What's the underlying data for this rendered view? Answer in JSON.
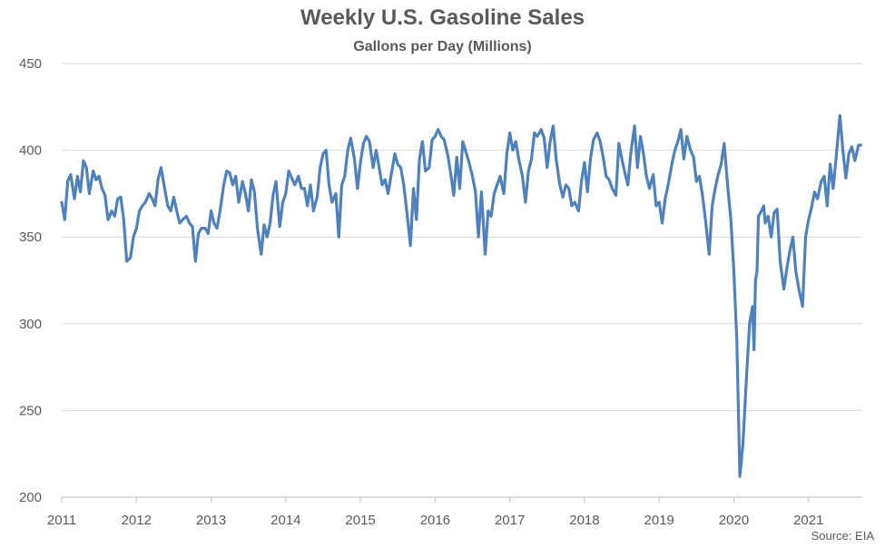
{
  "chart_data": {
    "type": "line",
    "title": "Weekly U.S. Gasoline Sales",
    "subtitle": "Gallons per Day (Millions)",
    "source": "Source: EIA",
    "xlabel": "",
    "ylabel": "",
    "xlim": [
      2011,
      2021.72
    ],
    "ylim": [
      200,
      450
    ],
    "y_ticks": [
      "200",
      "250",
      "300",
      "350",
      "400",
      "450"
    ],
    "x_ticks": [
      "2011",
      "2012",
      "2013",
      "2014",
      "2015",
      "2016",
      "2017",
      "2018",
      "2019",
      "2020",
      "2021"
    ],
    "grid": "horizontal",
    "line_color": "#4F81BD",
    "series": [
      {
        "x": [
          2011.0,
          2011.04,
          2011.08,
          2011.12,
          2011.17,
          2011.21,
          2011.25,
          2011.29,
          2011.33,
          2011.37,
          2011.42,
          2011.46,
          2011.5,
          2011.54,
          2011.58,
          2011.62,
          2011.67,
          2011.71,
          2011.75,
          2011.79,
          2011.83,
          2011.87,
          2011.92,
          2011.96,
          2012.0,
          2012.04,
          2012.08,
          2012.12,
          2012.17,
          2012.21,
          2012.25,
          2012.29,
          2012.33,
          2012.37,
          2012.42,
          2012.46,
          2012.5,
          2012.54,
          2012.58,
          2012.62,
          2012.67,
          2012.71,
          2012.75,
          2012.79,
          2012.83,
          2012.87,
          2012.92,
          2012.96,
          2013.0,
          2013.04,
          2013.08,
          2013.12,
          2013.17,
          2013.21,
          2013.25,
          2013.29,
          2013.33,
          2013.37,
          2013.42,
          2013.46,
          2013.5,
          2013.54,
          2013.58,
          2013.62,
          2013.67,
          2013.71,
          2013.75,
          2013.79,
          2013.83,
          2013.87,
          2013.92,
          2013.96,
          2014.0,
          2014.04,
          2014.08,
          2014.12,
          2014.17,
          2014.21,
          2014.25,
          2014.29,
          2014.33,
          2014.37,
          2014.42,
          2014.46,
          2014.5,
          2014.54,
          2014.58,
          2014.62,
          2014.67,
          2014.71,
          2014.75,
          2014.79,
          2014.83,
          2014.87,
          2014.92,
          2014.96,
          2015.0,
          2015.04,
          2015.08,
          2015.12,
          2015.17,
          2015.21,
          2015.25,
          2015.29,
          2015.33,
          2015.37,
          2015.42,
          2015.46,
          2015.5,
          2015.54,
          2015.58,
          2015.62,
          2015.67,
          2015.71,
          2015.75,
          2015.79,
          2015.83,
          2015.87,
          2015.92,
          2015.96,
          2016.0,
          2016.04,
          2016.08,
          2016.12,
          2016.17,
          2016.21,
          2016.25,
          2016.29,
          2016.33,
          2016.37,
          2016.42,
          2016.46,
          2016.5,
          2016.54,
          2016.58,
          2016.62,
          2016.67,
          2016.71,
          2016.75,
          2016.79,
          2016.83,
          2016.87,
          2016.92,
          2016.96,
          2017.0,
          2017.04,
          2017.08,
          2017.12,
          2017.17,
          2017.21,
          2017.25,
          2017.29,
          2017.33,
          2017.37,
          2017.42,
          2017.46,
          2017.5,
          2017.54,
          2017.58,
          2017.62,
          2017.67,
          2017.71,
          2017.75,
          2017.79,
          2017.83,
          2017.87,
          2017.92,
          2017.96,
          2018.0,
          2018.04,
          2018.08,
          2018.12,
          2018.17,
          2018.21,
          2018.25,
          2018.29,
          2018.33,
          2018.37,
          2018.42,
          2018.46,
          2018.5,
          2018.54,
          2018.58,
          2018.62,
          2018.67,
          2018.71,
          2018.75,
          2018.79,
          2018.83,
          2018.87,
          2018.92,
          2018.96,
          2019.0,
          2019.04,
          2019.08,
          2019.12,
          2019.17,
          2019.21,
          2019.25,
          2019.29,
          2019.33,
          2019.37,
          2019.42,
          2019.46,
          2019.5,
          2019.54,
          2019.58,
          2019.62,
          2019.67,
          2019.71,
          2019.75,
          2019.79,
          2019.83,
          2019.87,
          2019.92,
          2019.96,
          2020.0,
          2020.04,
          2020.08,
          2020.12,
          2020.17,
          2020.21,
          2020.25,
          2020.27,
          2020.29,
          2020.31,
          2020.33,
          2020.37,
          2020.4,
          2020.42,
          2020.46,
          2020.5,
          2020.54,
          2020.58,
          2020.62,
          2020.67,
          2020.71,
          2020.75,
          2020.79,
          2020.83,
          2020.87,
          2020.92,
          2020.96,
          2021.0,
          2021.04,
          2021.08,
          2021.12,
          2021.17,
          2021.21,
          2021.25,
          2021.29,
          2021.33,
          2021.37,
          2021.42,
          2021.46,
          2021.5,
          2021.54,
          2021.58,
          2021.62,
          2021.67,
          2021.7
        ],
        "values": [
          370,
          360,
          382,
          386,
          372,
          385,
          376,
          394,
          390,
          375,
          388,
          383,
          385,
          378,
          374,
          360,
          365,
          362,
          372,
          373,
          360,
          336,
          338,
          350,
          355,
          365,
          368,
          370,
          375,
          372,
          368,
          383,
          390,
          380,
          368,
          365,
          373,
          365,
          358,
          360,
          362,
          358,
          356,
          336,
          352,
          355,
          355,
          352,
          365,
          358,
          355,
          365,
          380,
          388,
          387,
          380,
          385,
          370,
          382,
          375,
          365,
          383,
          376,
          355,
          340,
          357,
          350,
          358,
          374,
          382,
          356,
          370,
          375,
          388,
          384,
          380,
          385,
          378,
          378,
          368,
          380,
          365,
          373,
          390,
          398,
          400,
          380,
          370,
          375,
          350,
          380,
          385,
          400,
          407,
          395,
          378,
          393,
          404,
          408,
          405,
          390,
          400,
          390,
          380,
          383,
          375,
          388,
          398,
          392,
          390,
          380,
          365,
          345,
          378,
          360,
          395,
          405,
          388,
          390,
          406,
          408,
          412,
          408,
          406,
          397,
          386,
          374,
          396,
          378,
          405,
          398,
          392,
          385,
          376,
          350,
          376,
          340,
          365,
          362,
          375,
          380,
          385,
          375,
          398,
          410,
          400,
          405,
          395,
          385,
          370,
          388,
          395,
          410,
          408,
          412,
          407,
          390,
          405,
          414,
          395,
          380,
          373,
          380,
          378,
          368,
          370,
          365,
          382,
          393,
          376,
          395,
          406,
          410,
          405,
          396,
          385,
          383,
          378,
          374,
          404,
          395,
          387,
          380,
          398,
          414,
          390,
          408,
          398,
          385,
          378,
          386,
          368,
          370,
          358,
          372,
          380,
          392,
          400,
          405,
          412,
          395,
          408,
          400,
          396,
          382,
          385,
          374,
          360,
          340,
          368,
          378,
          386,
          392,
          404,
          378,
          360,
          330,
          290,
          212,
          230,
          270,
          300,
          310,
          285,
          325,
          330,
          362,
          365,
          368,
          358,
          362,
          350,
          364,
          366,
          336,
          320,
          332,
          342,
          350,
          330,
          320,
          310,
          350,
          360,
          367,
          376,
          372,
          382,
          385,
          368,
          392,
          378,
          396,
          420,
          400,
          384,
          398,
          402,
          394,
          403,
          403
        ]
      }
    ]
  }
}
